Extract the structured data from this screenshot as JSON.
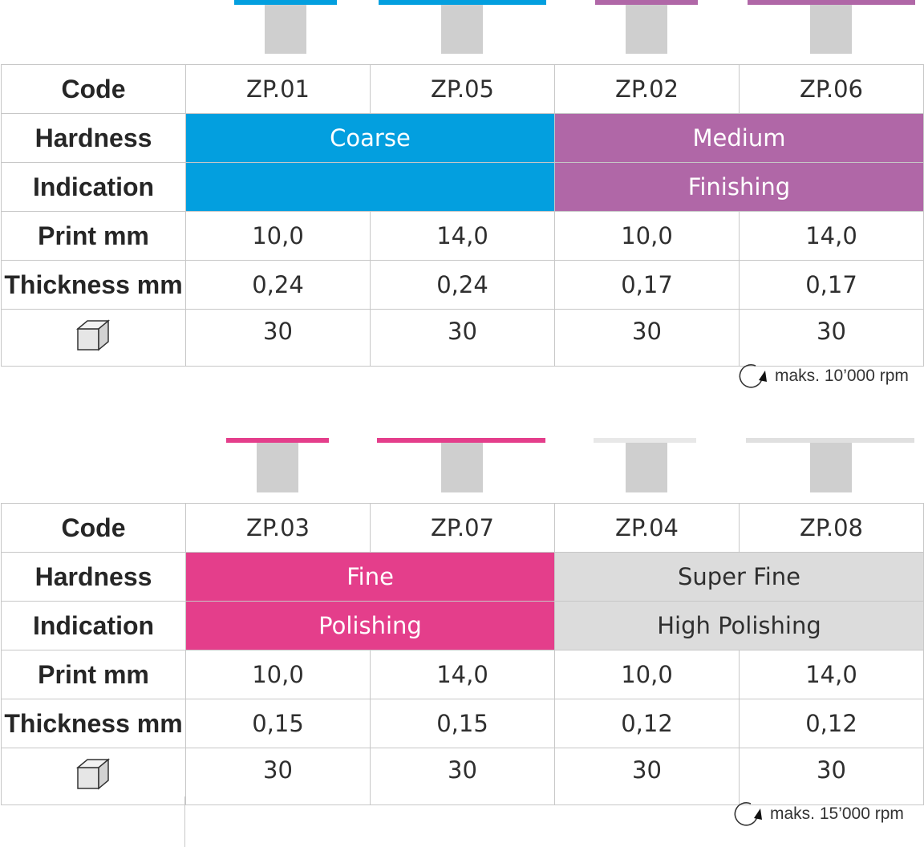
{
  "tables": [
    {
      "labels": {
        "code": "Code",
        "hardness": "Hardness",
        "indication": "Indication",
        "print": "Print mm",
        "thickness": "Thickness mm"
      },
      "codes": [
        "ZP.01",
        "ZP.05",
        "ZP.02",
        "ZP.06"
      ],
      "hardness": [
        "Coarse",
        "Medium"
      ],
      "indication": [
        "",
        "Finishing"
      ],
      "print_mm": [
        "10,0",
        "14,0",
        "10,0",
        "14,0"
      ],
      "thickness_mm": [
        "0,24",
        "0,24",
        "0,17",
        "0,17"
      ],
      "pack_qty": [
        "30",
        "30",
        "30",
        "30"
      ],
      "rpm_note": "maks. 10’000 rpm",
      "colors": [
        "#039fdf",
        "#b067a7"
      ]
    },
    {
      "labels": {
        "code": "Code",
        "hardness": "Hardness",
        "indication": "Indication",
        "print": "Print mm",
        "thickness": "Thickness mm"
      },
      "codes": [
        "ZP.03",
        "ZP.07",
        "ZP.04",
        "ZP.08"
      ],
      "hardness": [
        "Fine",
        "Super Fine"
      ],
      "indication": [
        "Polishing",
        "High Polishing"
      ],
      "print_mm": [
        "10,0",
        "14,0",
        "10,0",
        "14,0"
      ],
      "thickness_mm": [
        "0,15",
        "0,15",
        "0,12",
        "0,12"
      ],
      "pack_qty": [
        "30",
        "30",
        "30",
        "30"
      ],
      "rpm_note": "maks. 15’000 rpm",
      "colors": [
        "#e43e8b",
        "#dcdcdc"
      ]
    }
  ],
  "icons": {
    "box": "box-icon",
    "rotation": "rotation-arrow-icon"
  }
}
